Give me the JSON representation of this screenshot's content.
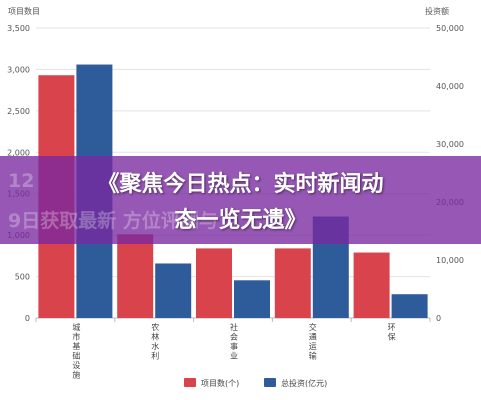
{
  "overlay": {
    "headline_line1": "《聚焦今日热点：实时新闻动",
    "headline_line2": "态一览无遗》",
    "ghost_line1": "12",
    "ghost_line2": "9日获取最新            方位评测与"
  },
  "chart_data": {
    "type": "bar",
    "title": "",
    "categories": [
      "城市基础设施",
      "农林水利",
      "社会事业",
      "交通运输",
      "环保"
    ],
    "y_left": {
      "label": "项目数目",
      "ylim": [
        0,
        3500
      ],
      "ticks": [
        0,
        500,
        1000,
        1500,
        2000,
        2500,
        3000,
        3500
      ]
    },
    "y_right": {
      "label": "投资额",
      "ylim": [
        0,
        50000
      ],
      "ticks": [
        0,
        10000,
        20000,
        30000,
        40000,
        50000
      ]
    },
    "series": [
      {
        "name": "项目数(个)",
        "axis": "left",
        "color": "#d9434b",
        "values": [
          2930,
          1010,
          840,
          840,
          790
        ]
      },
      {
        "name": "总投资(亿元)",
        "axis": "right",
        "color": "#2e5b9a",
        "values": [
          43700,
          9400,
          6500,
          17500,
          4100
        ]
      }
    ],
    "grid": true,
    "legend_position": "bottom-center"
  }
}
